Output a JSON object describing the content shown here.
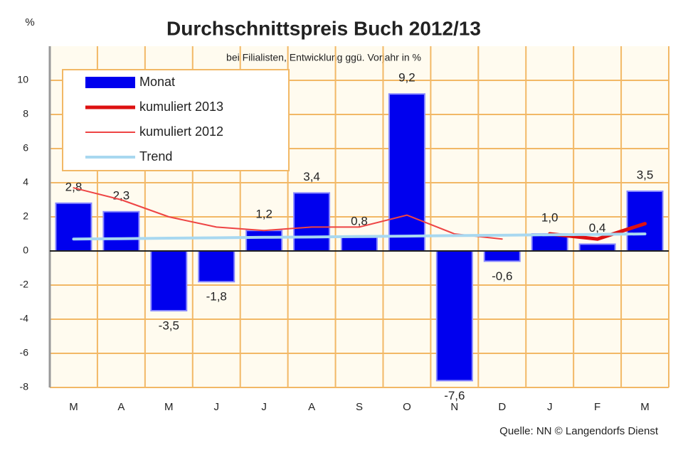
{
  "chart_data": {
    "type": "bar",
    "title": "Durchschnittspreis Buch 2012/13",
    "subtitle": "bei Filialisten, Entwicklung ggü. Vorjahr in %",
    "y_label": "%",
    "source": "Quelle: NN © Langendorfs Dienst",
    "categories": [
      "M",
      "A",
      "M",
      "J",
      "J",
      "A",
      "S",
      "O",
      "N",
      "D",
      "J",
      "F",
      "M"
    ],
    "ylim": [
      -8,
      12
    ],
    "yticks": [
      -8,
      -6,
      -4,
      -2,
      0,
      2,
      4,
      6,
      8,
      10
    ],
    "grid": true,
    "grid_color": "#f2b866",
    "legend": "upper left",
    "series": [
      {
        "name": "Monat",
        "type": "bar",
        "color": "#0000ee",
        "legend_color": "#0000ee",
        "values": [
          2.8,
          2.3,
          -3.5,
          -1.8,
          1.2,
          3.4,
          0.8,
          9.2,
          -7.6,
          -0.6,
          1.0,
          0.4,
          3.5
        ],
        "value_labels": [
          "2,8",
          "2,3",
          "-3,5",
          "-1,8",
          "1,2",
          "3,4",
          "0,8",
          "9,2",
          "-7,6",
          "-0,6",
          "1,0",
          "0,4",
          "3,5"
        ]
      },
      {
        "name": "kumuliert 2013",
        "type": "line",
        "color": "#dd1111",
        "legend_color": "#dd1111",
        "width": 5,
        "values": [
          null,
          null,
          null,
          null,
          null,
          null,
          null,
          null,
          null,
          null,
          1.0,
          0.7,
          1.6
        ]
      },
      {
        "name": "kumuliert 2012",
        "type": "line",
        "color": "#ee4444",
        "legend_color": "#111111",
        "width": 2,
        "values": [
          3.7,
          3.0,
          2.0,
          1.4,
          1.2,
          1.4,
          1.4,
          2.1,
          1.0,
          0.7,
          null,
          null,
          null
        ]
      },
      {
        "name": "Trend",
        "type": "line",
        "color": "#a8d8f0",
        "legend_color": "#3355ee",
        "width": 4,
        "values": [
          0.7,
          0.72,
          0.75,
          0.77,
          0.8,
          0.82,
          0.85,
          0.87,
          0.9,
          0.92,
          0.95,
          0.97,
          1.0
        ]
      }
    ]
  }
}
